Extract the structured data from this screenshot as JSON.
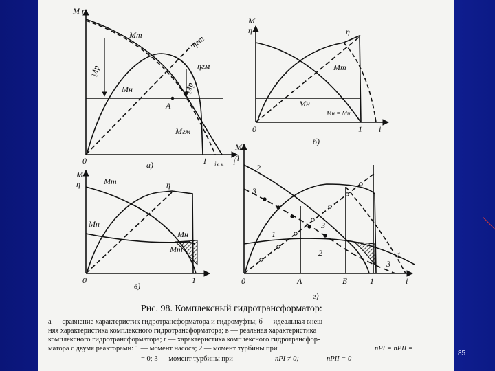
{
  "page_number": "85",
  "figure": {
    "caption_title": "Рис. 98. Комплексный гидротрансформатор:",
    "caption_lines": [
      "а — сравнение характеристик гидротрансформатора и гидромуфты; б — идеальная внеш-",
      "няя характеристика комплексного гидротрансформатора; в — реальная характеристика",
      "комплексного гидротрансформатора; г — характеристика комплексного гидротрансфор-",
      "матора с двумя реакторами: 1 — момент насоса; 2 — момент турбины при",
      "= 0; 3 — момент турбины при"
    ],
    "caption_formulas": {
      "line4_tail": "nРI = nРII =",
      "line5_mid": "nРI ≠ 0;",
      "line5_tail": "nРII = 0"
    }
  },
  "panels": {
    "a": {
      "label": "а)",
      "axis_top": "M  η",
      "curves": [
        "Mт",
        "ηгт",
        "ηгм",
        "Mр",
        "Mр",
        "Mн",
        "Mгм"
      ],
      "point_A": "A",
      "ticks": [
        "0",
        "1",
        "iх.х.",
        "i"
      ]
    },
    "b": {
      "label": "б)",
      "axis_top_1": "M",
      "axis_top_2": "η",
      "curves": [
        "η",
        "Mт",
        "Mн",
        "Mн = Mт"
      ],
      "ticks": [
        "0",
        "1",
        "i"
      ]
    },
    "v": {
      "label": "в)",
      "axis_top_1": "M",
      "axis_top_2": "η",
      "curves": [
        "Mт",
        "η",
        "Mн",
        "Mн",
        "Mт"
      ],
      "ticks": [
        "0",
        "1"
      ]
    },
    "g": {
      "label": "г)",
      "axis_top_1": "M",
      "axis_top_2": "η",
      "curves": [
        "2",
        "3",
        "1",
        "3",
        "2",
        "1",
        "3"
      ],
      "ticks": [
        "0",
        "A",
        "Б",
        "1",
        "i"
      ]
    }
  }
}
